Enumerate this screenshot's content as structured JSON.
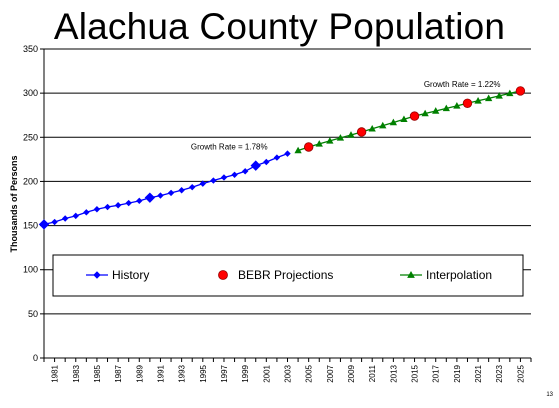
{
  "chart_data": {
    "type": "line",
    "title": "Alachua County Population",
    "ylabel": "Thousands of Persons",
    "xlabel": "",
    "ylim": [
      0,
      350
    ],
    "yticks": [
      0,
      50,
      100,
      150,
      200,
      250,
      300,
      350
    ],
    "xlim": [
      1980,
      2026
    ],
    "x_tick_labels": [
      "1981",
      "1983",
      "1985",
      "1987",
      "1989",
      "1991",
      "1993",
      "1995",
      "1997",
      "1999",
      "2001",
      "2003",
      "2005",
      "2007",
      "2009",
      "2011",
      "2013",
      "2015",
      "2017",
      "2019",
      "2021",
      "2023",
      "2025"
    ],
    "grid": "horizontal",
    "legend_position": "lower-center",
    "series": [
      {
        "name": "History",
        "color": "#0000ff",
        "marker": "diamond",
        "x": [
          1980,
          1981,
          1982,
          1983,
          1984,
          1985,
          1986,
          1987,
          1988,
          1989,
          1990,
          1991,
          1992,
          1993,
          1994,
          1995,
          1996,
          1997,
          1998,
          1999,
          2000,
          2001,
          2002,
          2003
        ],
        "y": [
          151.3,
          154.0,
          158.0,
          161.0,
          165.0,
          168.5,
          171.0,
          173.0,
          175.5,
          178.0,
          181.6,
          184.0,
          187.0,
          190.0,
          193.5,
          197.5,
          201.0,
          204.5,
          207.5,
          211.5,
          217.9,
          222.0,
          227.0,
          231.5
        ]
      },
      {
        "name": "BEBR Projections",
        "color": "#ff0000",
        "marker": "circle",
        "x": [
          2005,
          2010,
          2015,
          2020,
          2025
        ],
        "y": [
          239.0,
          256.0,
          274.0,
          288.5,
          302.5
        ]
      },
      {
        "name": "Interpolation",
        "color": "#008000",
        "marker": "triangle",
        "x": [
          2004,
          2005,
          2006,
          2007,
          2008,
          2009,
          2010,
          2011,
          2012,
          2013,
          2014,
          2015,
          2016,
          2017,
          2018,
          2019,
          2020,
          2021,
          2022,
          2023,
          2024,
          2025
        ],
        "y": [
          235.0,
          239.0,
          242.5,
          245.9,
          249.3,
          252.6,
          256.0,
          259.6,
          263.2,
          266.8,
          270.4,
          274.0,
          276.9,
          279.8,
          282.7,
          285.6,
          288.5,
          291.3,
          294.1,
          296.9,
          299.7,
          302.5
        ]
      }
    ],
    "large_markers": {
      "History": [
        1980,
        1990,
        2000
      ]
    },
    "annotations": [
      {
        "text": "Growth Rate = 1.78%",
        "x": 1997.5,
        "y": 236
      },
      {
        "text": "Growth Rate = 1.22%",
        "x": 2019.5,
        "y": 307
      }
    ]
  },
  "page_number": "13"
}
